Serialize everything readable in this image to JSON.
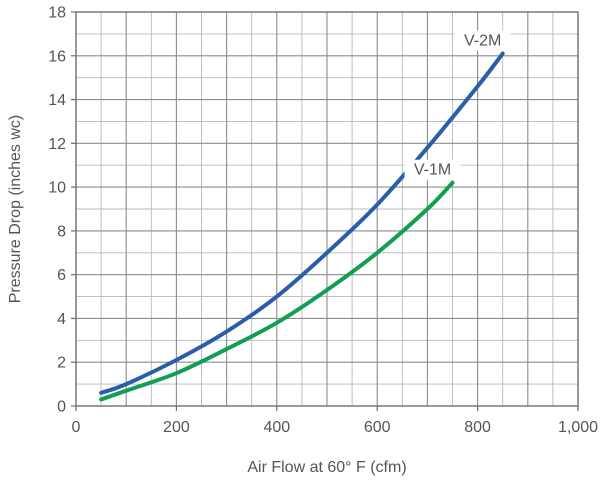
{
  "chart_data": {
    "type": "line",
    "xlabel": "Air Flow at 60° F (cfm)",
    "ylabel": "Pressure Drop (inches wc)",
    "xlim": [
      0,
      1000
    ],
    "ylim": [
      0,
      18
    ],
    "x_ticks": [
      0,
      200,
      400,
      600,
      800,
      1000
    ],
    "x_tick_labels": [
      "0",
      "200",
      "400",
      "600",
      "800",
      "1,000"
    ],
    "y_ticks": [
      0,
      2,
      4,
      6,
      8,
      10,
      12,
      14,
      16,
      18
    ],
    "y_tick_labels": [
      "0",
      "2",
      "4",
      "6",
      "8",
      "10",
      "12",
      "14",
      "16",
      "18"
    ],
    "grid": true,
    "series": [
      {
        "name": "V-2M",
        "color": "#2a5ea8",
        "x": [
          50,
          100,
          200,
          300,
          400,
          500,
          600,
          700,
          800,
          850
        ],
        "y": [
          0.6,
          1.0,
          2.1,
          3.4,
          5.0,
          7.0,
          9.2,
          11.8,
          14.6,
          16.1
        ]
      },
      {
        "name": "V-1M",
        "color": "#129e55",
        "x": [
          50,
          100,
          200,
          300,
          400,
          500,
          600,
          700,
          750
        ],
        "y": [
          0.3,
          0.7,
          1.5,
          2.6,
          3.8,
          5.3,
          7.0,
          9.0,
          10.2
        ]
      }
    ]
  }
}
